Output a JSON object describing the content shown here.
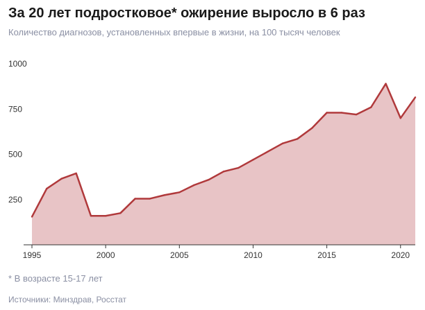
{
  "header": {
    "title": "За 20 лет подростковое* ожирение выросло в 6 раз",
    "subtitle": "Количество диагнозов, установленных впервые в жизни, на 100 тысяч человек"
  },
  "footer": {
    "footnote": "* В возрасте 15-17 лет",
    "source": "Источники: Минздрав, Росстат"
  },
  "colors": {
    "line": "#b0393b",
    "area": "#e8c4c6",
    "axis": "#333333"
  },
  "chart_data": {
    "type": "area",
    "title": "За 20 лет подростковое* ожирение выросло в 6 раз",
    "subtitle": "Количество диагнозов, установленных впервые в жизни, на 100 тысяч человек",
    "xlabel": "",
    "ylabel": "",
    "xlim": [
      1995,
      2021
    ],
    "ylim": [
      0,
      1000
    ],
    "x_ticks": [
      1995,
      2000,
      2005,
      2010,
      2015,
      2020
    ],
    "y_ticks": [
      250,
      500,
      750,
      1000
    ],
    "grid": false,
    "legend": "none",
    "series": [
      {
        "x": [
          1995,
          1996,
          1997,
          1998,
          1999,
          2000,
          2001,
          2002,
          2003,
          2004,
          2005,
          2006,
          2007,
          2008,
          2009,
          2010,
          2011,
          2012,
          2013,
          2014,
          2015,
          2016,
          2017,
          2018,
          2019,
          2020,
          2021
        ],
        "values": [
          155,
          310,
          365,
          395,
          160,
          160,
          175,
          255,
          255,
          275,
          290,
          330,
          360,
          405,
          425,
          470,
          515,
          560,
          585,
          645,
          730,
          730,
          720,
          760,
          890,
          700,
          815
        ]
      }
    ]
  }
}
